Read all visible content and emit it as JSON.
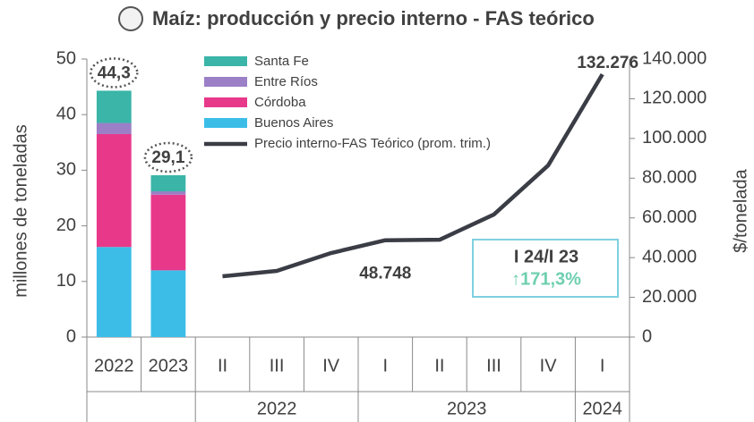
{
  "chart_data": {
    "type": "bar",
    "title": "Maíz: producción y precio interno - FAS teórico",
    "ylabel": "millones de toneladas",
    "y2label": "$/tonelada",
    "categories": [
      "2022",
      "2023",
      "II",
      "III",
      "IV",
      "I",
      "II",
      "III",
      "IV",
      "I"
    ],
    "years": [
      null,
      null,
      "2022",
      "2022",
      "2022",
      "2023",
      "2023",
      "2023",
      "2023",
      "2024"
    ],
    "series": [
      {
        "name": "Santa Fe",
        "type": "bar",
        "color": "#3ab5a8",
        "values": [
          5.8,
          2.9,
          null,
          null,
          null,
          null,
          null,
          null,
          null,
          null
        ]
      },
      {
        "name": "Entre Ríos",
        "type": "bar",
        "color": "#9b7fc7",
        "values": [
          2.0,
          0.6,
          null,
          null,
          null,
          null,
          null,
          null,
          null,
          null
        ]
      },
      {
        "name": "Córdoba",
        "type": "bar",
        "color": "#e8388a",
        "values": [
          20.3,
          13.6,
          null,
          null,
          null,
          null,
          null,
          null,
          null,
          null
        ]
      },
      {
        "name": "Buenos Aires",
        "type": "bar",
        "color": "#3bbde8",
        "values": [
          16.2,
          12.0,
          null,
          null,
          null,
          null,
          null,
          null,
          null,
          null
        ]
      },
      {
        "name": "Precio interno-FAS Teórico (prom. trim.)",
        "type": "line",
        "axis": "y2",
        "color": "#3a3d45",
        "values": [
          null,
          null,
          30600,
          33300,
          42300,
          48748,
          49000,
          61700,
          86400,
          132276
        ],
        "value_labels": [
          null,
          null,
          null,
          null,
          null,
          "48.748",
          null,
          null,
          null,
          "132.276"
        ]
      }
    ],
    "totals": [
      44.3,
      29.1
    ],
    "total_labels": [
      "44,3",
      "29,1"
    ],
    "ylim": [
      0,
      50
    ],
    "yticks": [
      0,
      10,
      20,
      30,
      40,
      50
    ],
    "y2lim": [
      0,
      140000
    ],
    "y2ticks": [
      0,
      {
        "value": 20000,
        "label": "20.000"
      },
      {
        "value": 40000,
        "label": "40.000"
      },
      {
        "value": 60000,
        "label": "60.000"
      },
      {
        "value": 80000,
        "label": "80.000"
      },
      {
        "value": 100000,
        "label": "100.000"
      },
      {
        "value": 120000,
        "label": "120.000"
      },
      {
        "value": 140000,
        "label": "140.000"
      }
    ],
    "annotation": {
      "title": "I 24/I 23",
      "change": "↑171,3%"
    }
  }
}
